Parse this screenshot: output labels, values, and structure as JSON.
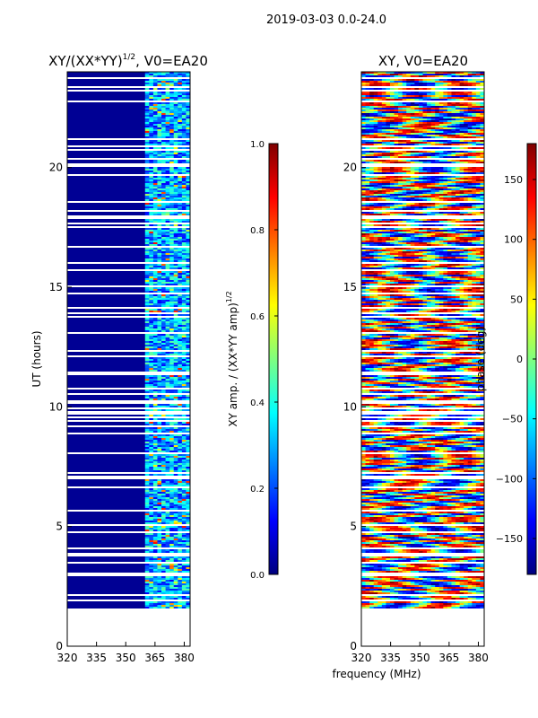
{
  "figure": {
    "suptitle": "2019-03-03 0.0-24.0",
    "xlabel_shared": "frequency (MHz)"
  },
  "chart_data": [
    {
      "type": "heatmap",
      "id": "ratio",
      "title": "XY/(XX*YY)",
      "title_exp": "1/2",
      "title_suffix": ", V0=EA20",
      "ylabel": "UT (hours)",
      "xlabel": "",
      "xlim": [
        320,
        383
      ],
      "ylim": [
        0,
        24
      ],
      "xticks": [
        320,
        335,
        350,
        365,
        380
      ],
      "yticks": [
        0,
        5,
        10,
        15,
        20
      ],
      "colorbar": {
        "label": "XY amp. / (XX*YY amp)",
        "label_exp": "1/2",
        "range": [
          0.0,
          1.0
        ],
        "ticks": [
          "0.0",
          "0.2",
          "0.4",
          "0.6",
          "0.8",
          "1.0"
        ],
        "tick_values": [
          0.0,
          0.2,
          0.4,
          0.6,
          0.8,
          1.0
        ]
      }
    },
    {
      "type": "heatmap",
      "id": "phase",
      "title": "XY, V0=EA20",
      "ylabel": "",
      "xlabel": "frequency (MHz)",
      "xlim": [
        320,
        383
      ],
      "ylim": [
        0,
        24
      ],
      "xticks": [
        320,
        335,
        350,
        365,
        380
      ],
      "yticks": [
        0,
        5,
        10,
        15,
        20
      ],
      "colorbar": {
        "label": "phase (deg)",
        "range": [
          -180,
          180
        ],
        "ticks": [
          "−150",
          "−100",
          "−50",
          "0",
          "50",
          "100",
          "150"
        ],
        "tick_values": [
          -150,
          -100,
          -50,
          0,
          50,
          100,
          150
        ]
      }
    }
  ]
}
